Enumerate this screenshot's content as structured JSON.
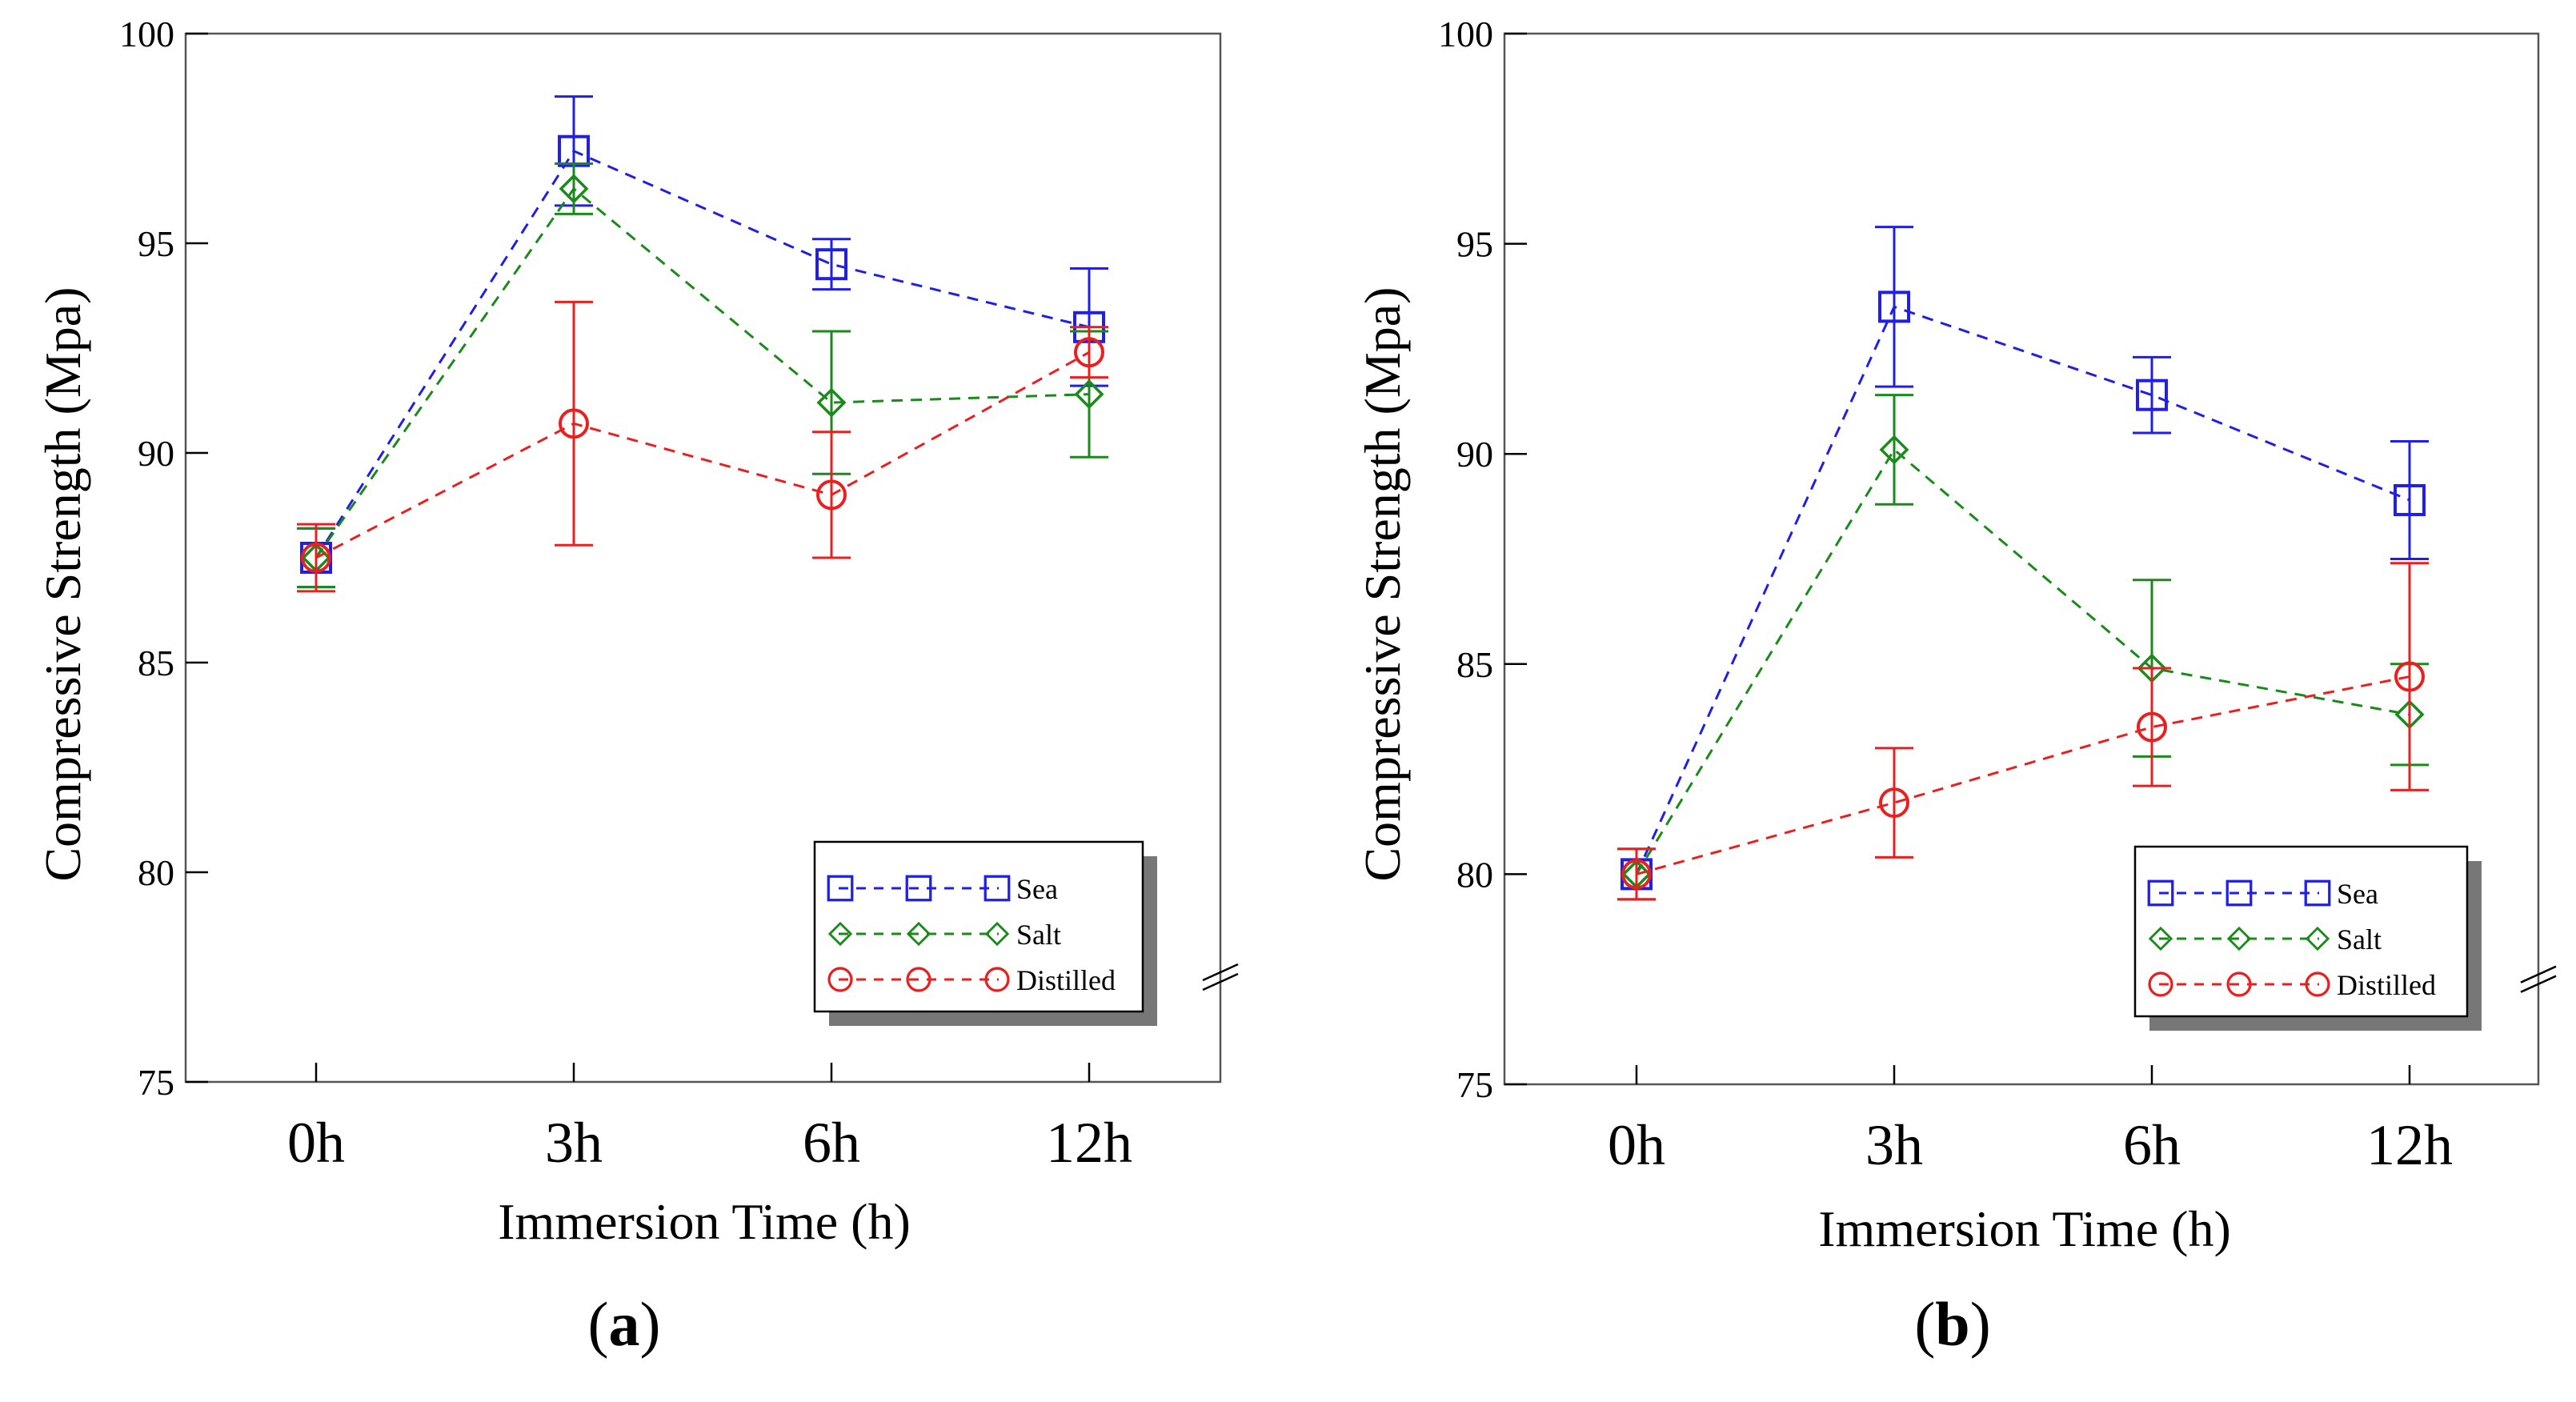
{
  "chart_data": [
    {
      "type": "line",
      "panel": "a",
      "panel_label": "a",
      "xlabel": "Immersion Time (h)",
      "ylabel": "Compressive Strength (Mpa)",
      "categories": [
        "0h",
        "3h",
        "6h",
        "12h"
      ],
      "ylim": [
        75,
        100
      ],
      "yticks": [
        75,
        80,
        85,
        90,
        95,
        100
      ],
      "legend_position": "bottom-right",
      "series": [
        {
          "name": "Sea",
          "color": "#1f1fe6",
          "marker": "square",
          "values": [
            87.5,
            97.2,
            94.5,
            93.0
          ],
          "err": [
            0.7,
            1.3,
            0.6,
            1.4
          ]
        },
        {
          "name": "Salt",
          "color": "#1a8a1a",
          "marker": "diamond",
          "values": [
            87.5,
            96.3,
            91.2,
            91.4
          ],
          "err": [
            0.7,
            0.6,
            1.7,
            1.5
          ]
        },
        {
          "name": "Distilled",
          "color": "#e82020",
          "marker": "circle",
          "values": [
            87.5,
            90.7,
            89.0,
            92.4
          ],
          "err": [
            0.8,
            2.9,
            1.5,
            0.6
          ]
        }
      ]
    },
    {
      "type": "line",
      "panel": "b",
      "panel_label": "b",
      "xlabel": "Immersion Time (h)",
      "ylabel": "Compressive Strength (Mpa)",
      "categories": [
        "0h",
        "3h",
        "6h",
        "12h"
      ],
      "ylim": [
        75,
        100
      ],
      "yticks": [
        75,
        80,
        85,
        90,
        95,
        100
      ],
      "legend_position": "bottom-right",
      "series": [
        {
          "name": "Sea",
          "color": "#1f1fe6",
          "marker": "square",
          "values": [
            80.0,
            93.5,
            91.4,
            88.9
          ],
          "err": [
            0.6,
            1.9,
            0.9,
            1.4
          ]
        },
        {
          "name": "Salt",
          "color": "#1a8a1a",
          "marker": "diamond",
          "values": [
            80.0,
            90.1,
            84.9,
            83.8
          ],
          "err": [
            0.6,
            1.3,
            2.1,
            1.2
          ]
        },
        {
          "name": "Distilled",
          "color": "#e82020",
          "marker": "circle",
          "values": [
            80.0,
            81.7,
            83.5,
            84.7
          ],
          "err": [
            0.6,
            1.3,
            1.4,
            2.7
          ]
        }
      ]
    }
  ]
}
